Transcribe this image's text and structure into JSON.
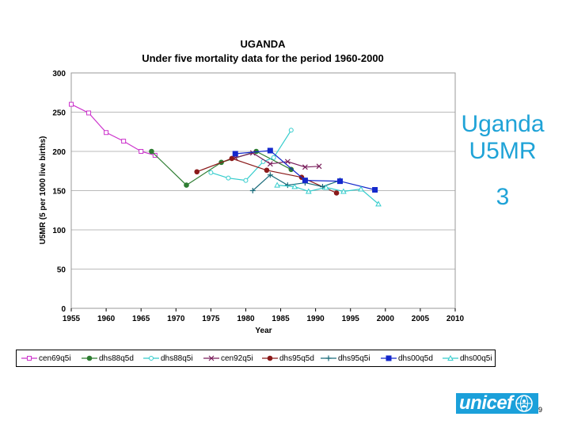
{
  "chart_data": {
    "type": "line",
    "title": "UGANDA",
    "subtitle": "Under five mortality data for the period 1960-2000",
    "xlabel": "Year",
    "ylabel": "U5MR (5 per 1000 live births)",
    "xlim": [
      1955,
      2010
    ],
    "ylim": [
      0,
      300
    ],
    "xticks": [
      1955,
      1960,
      1965,
      1970,
      1975,
      1980,
      1985,
      1990,
      1995,
      2000,
      2005,
      2010
    ],
    "yticks": [
      0,
      50,
      100,
      150,
      200,
      250,
      300
    ],
    "grid": "horizontal",
    "legend_position": "bottom",
    "series": [
      {
        "name": "cen69q5i",
        "color": "#cc33cc",
        "marker": "square-open",
        "points": [
          [
            1955,
            260
          ],
          [
            1957.5,
            249
          ],
          [
            1960,
            224
          ],
          [
            1962.5,
            213
          ],
          [
            1965,
            200
          ],
          [
            1967,
            195
          ]
        ]
      },
      {
        "name": "dhs88q5d",
        "color": "#2e7d32",
        "marker": "circle-filled",
        "points": [
          [
            1966.5,
            200
          ],
          [
            1971.5,
            157
          ],
          [
            1976.5,
            186
          ],
          [
            1981.5,
            200
          ],
          [
            1986.5,
            177
          ]
        ]
      },
      {
        "name": "dhs88q5i",
        "color": "#33cccc",
        "marker": "circle-open",
        "points": [
          [
            1975,
            173
          ],
          [
            1977.5,
            166
          ],
          [
            1980,
            163
          ],
          [
            1982.5,
            187
          ],
          [
            1984,
            192
          ],
          [
            1986.5,
            227
          ]
        ]
      },
      {
        "name": "cen92q5i",
        "color": "#7a1f5c",
        "marker": "x",
        "points": [
          [
            1978.5,
            192
          ],
          [
            1981,
            198
          ],
          [
            1983.5,
            184
          ],
          [
            1986,
            187
          ],
          [
            1988.5,
            180
          ],
          [
            1990.5,
            181
          ]
        ]
      },
      {
        "name": "dhs95q5d",
        "color": "#8b1a1a",
        "marker": "circle-filled",
        "points": [
          [
            1973,
            174
          ],
          [
            1978,
            191
          ],
          [
            1983,
            176
          ],
          [
            1988,
            167
          ],
          [
            1993,
            147
          ]
        ]
      },
      {
        "name": "dhs95q5i",
        "color": "#1a6b7a",
        "marker": "plus",
        "points": [
          [
            1981,
            150
          ],
          [
            1983.5,
            170
          ],
          [
            1986,
            157
          ],
          [
            1988.5,
            160
          ],
          [
            1991,
            155
          ],
          [
            1993.5,
            163
          ]
        ]
      },
      {
        "name": "dhs00q5d",
        "color": "#1428cc",
        "marker": "square-filled",
        "points": [
          [
            1978.5,
            197
          ],
          [
            1983.5,
            201
          ],
          [
            1988.5,
            163
          ],
          [
            1993.5,
            162
          ],
          [
            1998.5,
            151
          ]
        ]
      },
      {
        "name": "dhs00q5i",
        "color": "#33cccc",
        "marker": "triangle-open",
        "points": [
          [
            1984.5,
            157
          ],
          [
            1987,
            155
          ],
          [
            1989,
            149
          ],
          [
            1991.5,
            154
          ],
          [
            1994,
            149
          ],
          [
            1996.5,
            152
          ],
          [
            1999,
            133
          ]
        ]
      }
    ]
  },
  "side_text": {
    "title": "Uganda U5MR",
    "number": "3"
  },
  "logo": {
    "text": "unicef",
    "emblem_icon": "unicef-emblem-icon",
    "color": "#1ba0da"
  },
  "page_number": "9"
}
